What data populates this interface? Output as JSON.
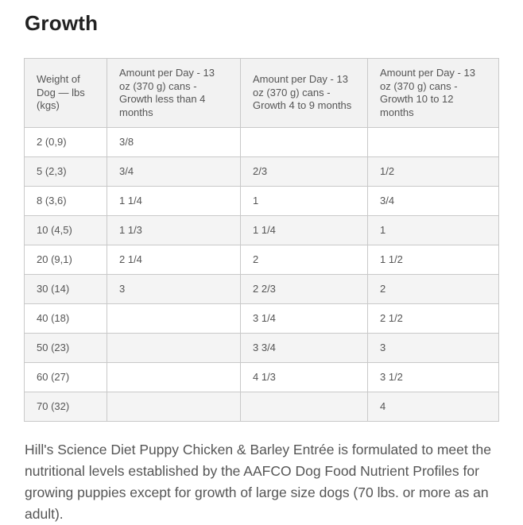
{
  "heading": "Growth",
  "table": {
    "headers": [
      "Weight of Dog — lbs (kgs)",
      "Amount per Day - 13 oz (370 g) cans - Growth less than 4 months",
      "Amount per Day - 13 oz (370 g) cans - Growth 4 to 9 months",
      "Amount per Day - 13 oz (370 g) cans - Growth 10 to 12 months"
    ],
    "rows": [
      [
        "2 (0,9)",
        "3/8",
        "",
        ""
      ],
      [
        "5 (2,3)",
        "3/4",
        "2/3",
        "1/2"
      ],
      [
        "8 (3,6)",
        "1 1/4",
        "1",
        "3/4"
      ],
      [
        "10 (4,5)",
        "1 1/3",
        "1 1/4",
        "1"
      ],
      [
        "20 (9,1)",
        "2 1/4",
        "2",
        "1 1/2"
      ],
      [
        "30 (14)",
        "3",
        "2 2/3",
        "2"
      ],
      [
        "40 (18)",
        "",
        "3 1/4",
        "2 1/2"
      ],
      [
        "50 (23)",
        "",
        "3 3/4",
        "3"
      ],
      [
        "60 (27)",
        "",
        "4 1/3",
        "3 1/2"
      ],
      [
        "70 (32)",
        "",
        "",
        "4"
      ]
    ]
  },
  "note": "Hill's Science Diet Puppy Chicken & Barley Entrée is formulated to meet the nutritional levels established by the AAFCO Dog Food Nutrient Profiles for growing puppies except for growth of large size dogs (70 lbs. or more as an adult)."
}
